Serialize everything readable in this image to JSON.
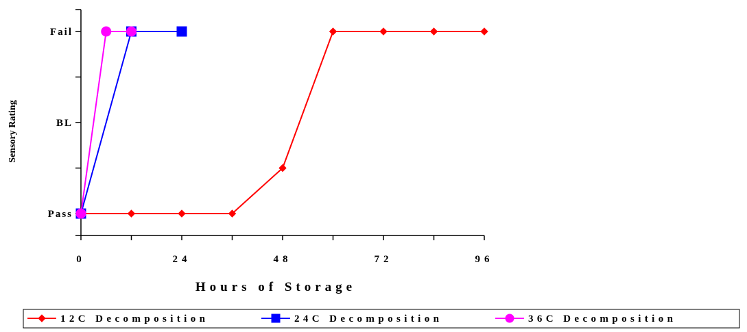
{
  "chart_data": {
    "type": "line",
    "title": "",
    "xlabel": "Hours of Storage",
    "ylabel": "Sensory Rating",
    "xlim": [
      0,
      96
    ],
    "x_ticks": [
      0,
      24,
      48,
      72,
      96
    ],
    "x_tick_labels": [
      "0",
      "24",
      "48",
      "72",
      "96"
    ],
    "ylim": [
      -0.5,
      4.5
    ],
    "y_ticks": [
      0,
      1,
      2,
      3,
      4
    ],
    "y_tick_labels": [
      {
        "value": 0,
        "label": "Pass"
      },
      {
        "value": 2,
        "label": "BL"
      },
      {
        "value": 4,
        "label": "Fail"
      }
    ],
    "y_categories": [
      "Pass",
      "BL",
      "Fail"
    ],
    "grid": false,
    "legend_position": "bottom",
    "series": [
      {
        "name": "12C Decomposition",
        "color": "#ff0000",
        "marker": "diamond",
        "x": [
          0,
          12,
          24,
          36,
          48,
          60,
          72,
          84,
          96
        ],
        "y": [
          0,
          0,
          0,
          0,
          1,
          4,
          4,
          4,
          4
        ]
      },
      {
        "name": "24C Decomposition",
        "color": "#0000ff",
        "marker": "square",
        "x": [
          0,
          12,
          24
        ],
        "y": [
          0,
          4,
          4
        ]
      },
      {
        "name": "36C Decomposition",
        "color": "#ff00ff",
        "marker": "circle",
        "x": [
          0,
          6,
          12
        ],
        "y": [
          0,
          4,
          4
        ]
      }
    ]
  }
}
